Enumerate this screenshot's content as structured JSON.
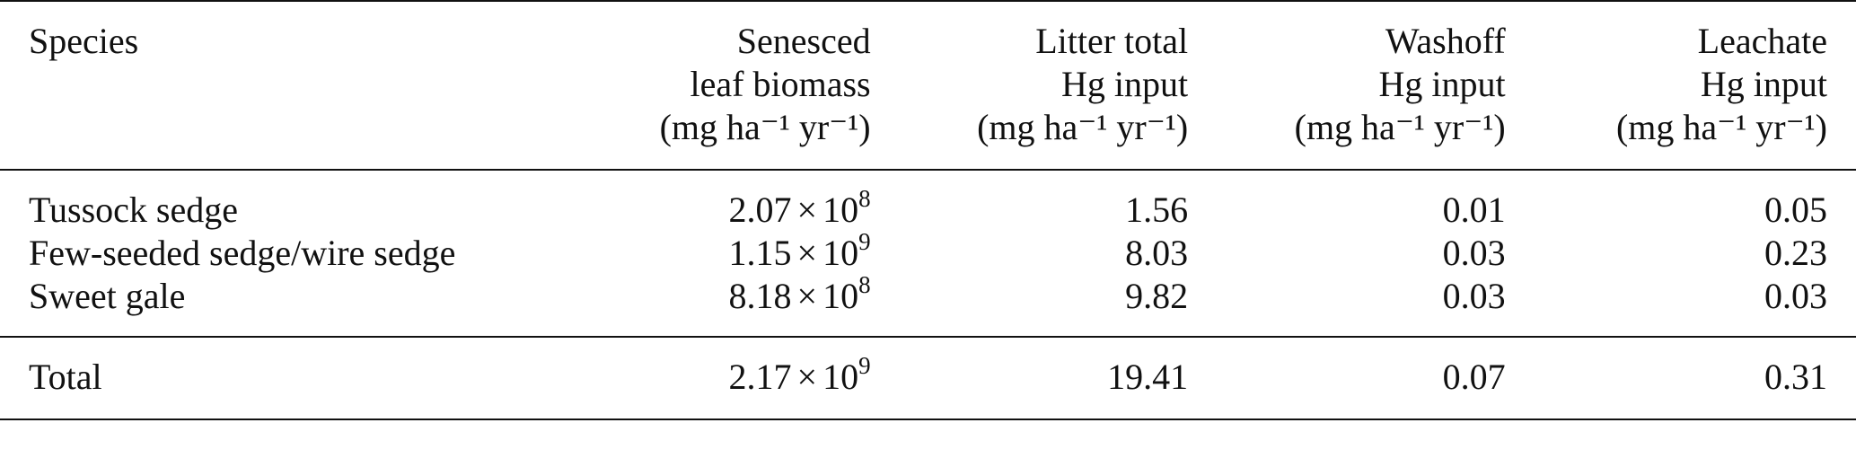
{
  "table": {
    "headers": [
      {
        "lines": [
          "Species"
        ],
        "unit": ""
      },
      {
        "lines": [
          "Senesced",
          "leaf biomass"
        ],
        "unit": "(mg ha⁻¹ yr⁻¹)"
      },
      {
        "lines": [
          "Litter total",
          "Hg input"
        ],
        "unit": "(mg ha⁻¹ yr⁻¹)"
      },
      {
        "lines": [
          "Washoff",
          "Hg input"
        ],
        "unit": "(mg ha⁻¹ yr⁻¹)"
      },
      {
        "lines": [
          "Leachate",
          "Hg input"
        ],
        "unit": "(mg ha⁻¹ yr⁻¹)"
      }
    ],
    "rows": [
      {
        "species": "Tussock sedge",
        "biomass_mantissa": "2.07",
        "biomass_exponent": "8",
        "litter": "1.56",
        "washoff": "0.01",
        "leachate": "0.05"
      },
      {
        "species": "Few-seeded sedge/wire sedge",
        "biomass_mantissa": "1.15",
        "biomass_exponent": "9",
        "litter": "8.03",
        "washoff": "0.03",
        "leachate": "0.23"
      },
      {
        "species": "Sweet gale",
        "biomass_mantissa": "8.18",
        "biomass_exponent": "8",
        "litter": "9.82",
        "washoff": "0.03",
        "leachate": "0.03"
      }
    ],
    "total": {
      "species": "Total",
      "biomass_mantissa": "2.17",
      "biomass_exponent": "9",
      "litter": "19.41",
      "washoff": "0.07",
      "leachate": "0.31"
    },
    "times_symbol": "×",
    "base": "10"
  }
}
